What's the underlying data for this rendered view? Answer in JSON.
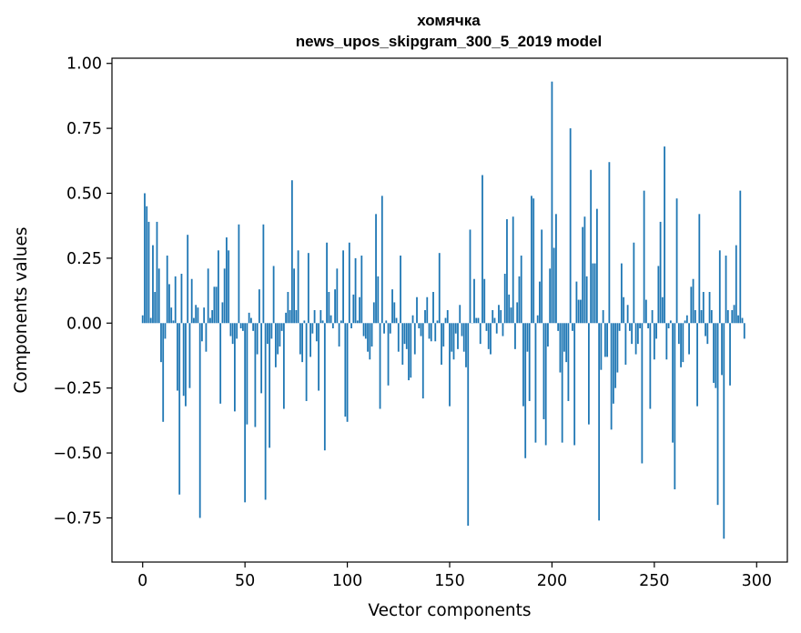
{
  "chart_data": {
    "type": "bar",
    "title": "хомячка",
    "subtitle": "news_upos_skipgram_300_5_2019 model",
    "xlabel": "Vector components",
    "ylabel": "Components values",
    "xlim": [
      -15,
      315
    ],
    "ylim": [
      -0.92,
      1.02
    ],
    "xticks": [
      0,
      50,
      100,
      150,
      200,
      250,
      300
    ],
    "xtick_labels": [
      "0",
      "50",
      "100",
      "150",
      "200",
      "250",
      "300"
    ],
    "yticks": [
      -0.75,
      -0.5,
      -0.25,
      0.0,
      0.25,
      0.5,
      0.75,
      1.0
    ],
    "ytick_labels": [
      "−0.75",
      "−0.50",
      "−0.25",
      "0.00",
      "0.25",
      "0.50",
      "0.75",
      "1.00"
    ],
    "bar_color": "#1f77b4",
    "values": [
      0.03,
      0.5,
      0.45,
      0.39,
      0.02,
      0.3,
      0.12,
      0.39,
      0.21,
      -0.15,
      -0.38,
      -0.06,
      0.26,
      0.15,
      0.06,
      0.01,
      0.18,
      -0.26,
      -0.66,
      0.19,
      -0.28,
      -0.32,
      0.34,
      -0.25,
      0.17,
      0.02,
      0.07,
      0.06,
      -0.75,
      -0.07,
      0.06,
      -0.11,
      0.21,
      0.02,
      0.05,
      0.14,
      0.14,
      0.28,
      -0.31,
      0.08,
      0.21,
      0.33,
      0.28,
      -0.05,
      -0.08,
      -0.34,
      -0.06,
      0.38,
      -0.02,
      -0.03,
      -0.69,
      -0.39,
      0.04,
      0.02,
      -0.03,
      -0.4,
      -0.12,
      0.13,
      -0.27,
      0.38,
      -0.68,
      -0.08,
      -0.48,
      -0.06,
      0.22,
      -0.17,
      -0.12,
      -0.09,
      -0.03,
      -0.33,
      0.04,
      0.12,
      0.05,
      0.55,
      0.21,
      0.05,
      0.28,
      -0.12,
      -0.15,
      0.01,
      -0.3,
      0.27,
      -0.13,
      -0.04,
      0.05,
      -0.07,
      -0.26,
      0.05,
      0.01,
      -0.49,
      0.31,
      0.12,
      0.03,
      -0.02,
      0.13,
      0.21,
      -0.09,
      0.01,
      0.28,
      -0.36,
      -0.38,
      0.31,
      -0.02,
      0.11,
      0.25,
      0.01,
      0.1,
      0.26,
      -0.05,
      -0.06,
      -0.11,
      -0.14,
      -0.09,
      0.08,
      0.42,
      0.18,
      -0.33,
      0.49,
      -0.04,
      0.01,
      -0.24,
      -0.04,
      0.13,
      0.08,
      0.02,
      -0.11,
      0.26,
      -0.16,
      -0.08,
      -0.1,
      -0.22,
      -0.21,
      0.03,
      -0.12,
      0.1,
      -0.02,
      -0.05,
      -0.29,
      0.05,
      0.1,
      -0.06,
      -0.07,
      0.12,
      -0.07,
      0.01,
      0.27,
      -0.16,
      -0.09,
      0.02,
      0.05,
      -0.32,
      -0.11,
      -0.14,
      -0.04,
      -0.1,
      0.07,
      -0.05,
      -0.11,
      -0.17,
      -0.78,
      0.36,
      0.0,
      0.17,
      0.02,
      0.02,
      -0.08,
      0.57,
      0.17,
      -0.03,
      -0.1,
      -0.12,
      0.05,
      0.02,
      -0.04,
      0.07,
      0.05,
      -0.05,
      0.19,
      0.4,
      0.11,
      0.06,
      0.41,
      -0.1,
      0.08,
      0.18,
      0.26,
      -0.32,
      -0.52,
      -0.11,
      -0.3,
      0.49,
      0.48,
      -0.46,
      0.03,
      0.16,
      0.36,
      -0.37,
      -0.47,
      -0.09,
      0.21,
      0.93,
      0.29,
      0.42,
      -0.03,
      -0.19,
      -0.46,
      -0.11,
      -0.15,
      -0.3,
      0.75,
      -0.03,
      -0.47,
      0.16,
      0.09,
      0.09,
      0.37,
      0.41,
      0.18,
      -0.39,
      0.59,
      0.23,
      0.23,
      0.44,
      -0.76,
      -0.18,
      0.05,
      -0.13,
      -0.13,
      0.62,
      -0.41,
      -0.31,
      -0.25,
      -0.19,
      -0.03,
      0.23,
      0.1,
      -0.16,
      0.07,
      -0.03,
      -0.08,
      0.31,
      -0.12,
      -0.08,
      -0.02,
      -0.54,
      0.51,
      0.09,
      -0.02,
      -0.33,
      0.05,
      -0.14,
      -0.06,
      0.22,
      0.39,
      0.1,
      0.68,
      -0.14,
      -0.02,
      0.01,
      -0.46,
      -0.64,
      0.48,
      -0.08,
      -0.17,
      -0.15,
      0.01,
      0.03,
      -0.12,
      0.14,
      0.17,
      0.05,
      -0.32,
      0.42,
      0.05,
      0.12,
      -0.05,
      -0.08,
      0.12,
      0.05,
      -0.23,
      -0.25,
      -0.7,
      0.28,
      -0.2,
      -0.83,
      0.26,
      0.05,
      -0.24,
      0.05,
      0.07,
      0.3,
      0.03,
      0.51,
      0.02,
      -0.06
    ]
  }
}
